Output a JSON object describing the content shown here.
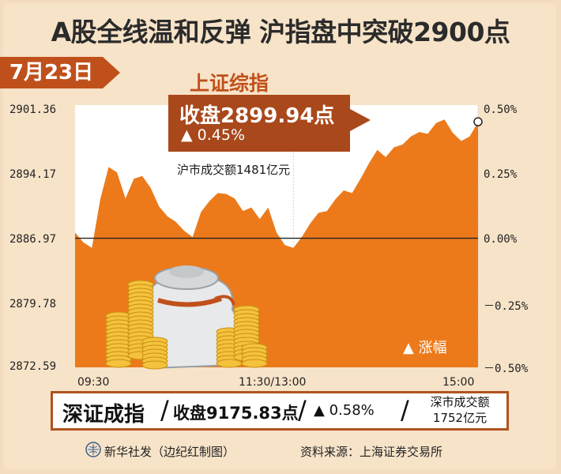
{
  "headline": "A股全线温和反弹  沪指盘中突破2900点",
  "date": "7月23日",
  "index_name": "上证综指",
  "callout": {
    "close": "收盘2899.94点",
    "change": "▲ 0.45%"
  },
  "volume_sh": "沪市成交额1481亿元",
  "legend": "▲ 涨幅",
  "shenzhen": {
    "name": "深证成指",
    "close": "收盘9175.83点",
    "change": "▲ 0.58%",
    "volume_line1": "深市成交额",
    "volume_line2": "1752亿元"
  },
  "footer": {
    "credit": "新华社发（边纪红制图）",
    "source": "资料来源：上海证券交易所"
  },
  "colors": {
    "area": "#ec7a1b",
    "accent": "#c0501b",
    "callout": "#a9481b",
    "background": "#f7e3c8"
  },
  "chart_data": {
    "type": "area",
    "title": "上证综指",
    "x_ticks": [
      "09:30",
      "11:30/13:00",
      "15:00"
    ],
    "y_ticks_left": [
      "2901.36",
      "2894.17",
      "2886.97",
      "2879.78",
      "2872.59"
    ],
    "y_ticks_right": [
      "0.50%",
      "0.25%",
      "0.00%",
      "－0.25%",
      "－0.50%"
    ],
    "ylim": [
      2872.59,
      2901.36
    ],
    "baseline": 2886.97,
    "x": [
      0,
      5,
      10,
      15,
      20,
      25,
      30,
      35,
      40,
      45,
      50,
      55,
      60,
      65,
      70,
      75,
      80,
      85,
      90,
      95,
      100,
      105,
      110,
      115,
      120,
      125,
      130,
      135,
      140,
      145,
      150,
      155,
      160,
      165,
      170,
      175,
      180,
      185,
      190,
      195,
      200,
      205,
      210,
      215,
      220,
      225,
      230,
      235,
      240
    ],
    "values": [
      2887.6,
      2886.5,
      2885.9,
      2891.3,
      2894.9,
      2894.3,
      2891.4,
      2893.6,
      2893.9,
      2892.6,
      2890.5,
      2889.4,
      2888.8,
      2887.8,
      2887.1,
      2889.9,
      2891.1,
      2892.0,
      2891.9,
      2891.4,
      2890.0,
      2890.4,
      2889.1,
      2890.4,
      2887.6,
      2886.2,
      2885.9,
      2887.1,
      2888.6,
      2889.8,
      2890.0,
      2891.3,
      2892.3,
      2892.0,
      2893.6,
      2895.3,
      2896.8,
      2896.0,
      2897.1,
      2897.4,
      2898.3,
      2898.8,
      2898.6,
      2899.8,
      2900.2,
      2898.7,
      2897.8,
      2898.3,
      2899.9
    ],
    "close_marker": 2899.94
  }
}
